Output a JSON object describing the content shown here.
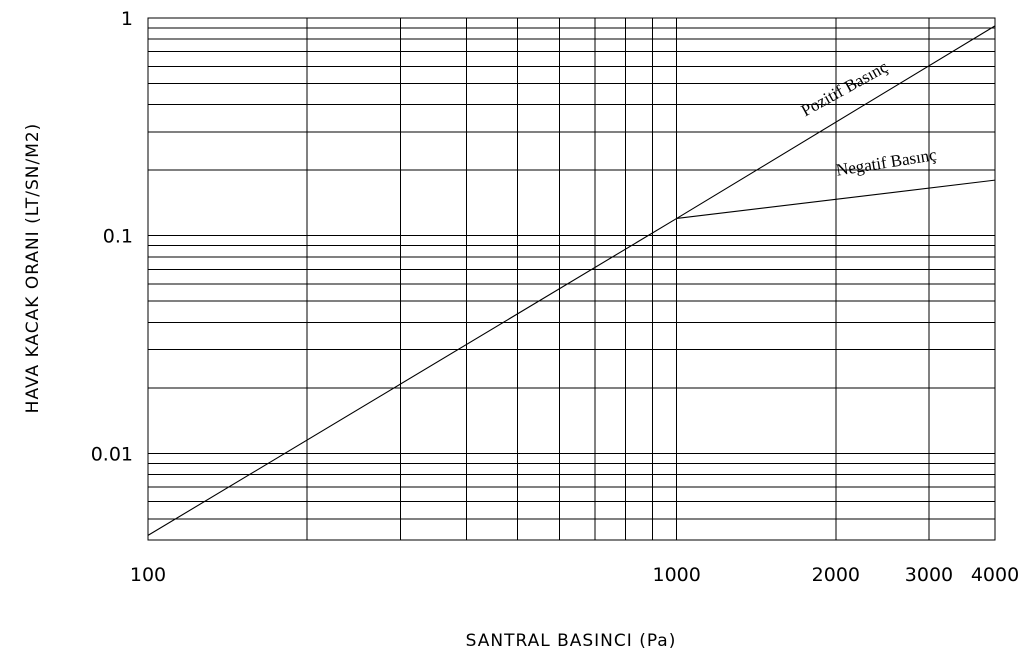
{
  "chart_data": {
    "type": "line",
    "title": "",
    "xlabel": "SANTRAL BASINCI (Pa)",
    "ylabel": "HAVA KACAK ORANI (LT/SN/M2)",
    "x_scale": "log",
    "y_scale": "log",
    "xlim": [
      100,
      4000
    ],
    "ylim": [
      0.004,
      1
    ],
    "grid": true,
    "x_ticks": [
      100,
      1000,
      2000,
      3000,
      4000
    ],
    "x_tick_labels": [
      "100",
      "1000",
      "2000",
      "3000",
      "4000"
    ],
    "y_ticks": [
      0.01,
      0.1,
      1
    ],
    "y_tick_labels": [
      "0.01",
      "0.1",
      "1"
    ],
    "series": [
      {
        "x": [
          100,
          1000,
          4000
        ],
        "y": [
          0.0042,
          0.12,
          0.92
        ]
      },
      {
        "x": [
          1000,
          4000
        ],
        "y": [
          0.12,
          0.18
        ]
      }
    ],
    "annotations": [
      {
        "text": "Pozitif Basınç",
        "x": 2100,
        "y": 0.45
      },
      {
        "text": "Negatif Basınç",
        "x": 2500,
        "y": 0.205
      }
    ]
  }
}
